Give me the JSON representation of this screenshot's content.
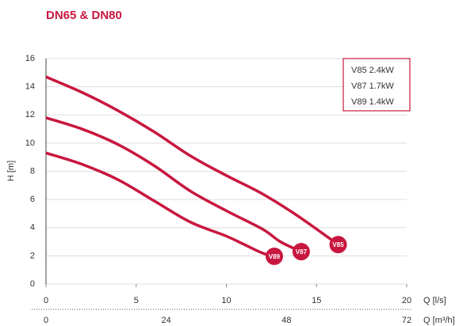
{
  "chart_data": {
    "type": "line",
    "title": "DN65 & DN80",
    "y_label": "H [m]",
    "x_label": "Q [l/s]",
    "x2_label": "Q [m³/h]",
    "xlim": [
      0,
      20
    ],
    "xticks": [
      0,
      5,
      10,
      15,
      20
    ],
    "x2lim": [
      0,
      72
    ],
    "x2ticks": [
      0,
      24,
      48,
      72
    ],
    "ylim": [
      0,
      16
    ],
    "yticks": [
      0,
      2,
      4,
      6,
      8,
      10,
      12,
      14,
      16
    ],
    "grid": true,
    "legend": "upper right",
    "series": [
      {
        "name": "V85 2.4kW",
        "marker_label": "V85",
        "color": "#c8173f",
        "x": [
          0,
          2,
          4,
          6,
          8,
          10,
          12,
          14,
          16.2
        ],
        "values": [
          14.7,
          13.6,
          12.3,
          10.8,
          9.1,
          7.7,
          6.4,
          4.8,
          2.8
        ]
      },
      {
        "name": "V87 1.7kW",
        "marker_label": "V87",
        "color": "#c8173f",
        "x": [
          0,
          2,
          4,
          6,
          8,
          10,
          12,
          13,
          14.15
        ],
        "values": [
          11.8,
          11.0,
          9.9,
          8.4,
          6.6,
          5.2,
          3.9,
          3.0,
          2.3
        ]
      },
      {
        "name": "V89 1.4kW",
        "marker_label": "V89",
        "color": "#c8173f",
        "x": [
          0,
          2,
          4,
          6,
          8,
          10,
          11,
          12,
          12.66
        ],
        "values": [
          9.3,
          8.5,
          7.4,
          5.9,
          4.4,
          3.4,
          2.8,
          2.2,
          1.97
        ]
      }
    ]
  }
}
